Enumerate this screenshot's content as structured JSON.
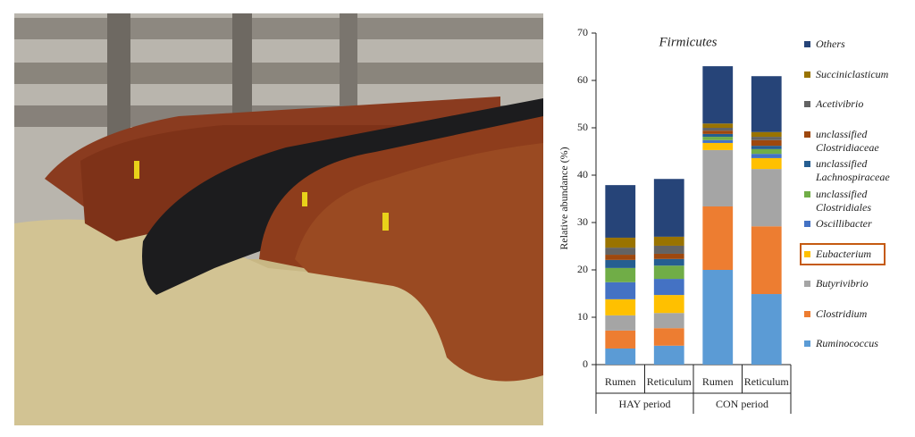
{
  "chart_data": {
    "type": "stacked_bar",
    "title": "Firmicutes",
    "y_label": "Relative abundance (%)",
    "categories": [
      "Rumen",
      "Reticulum",
      "Rumen",
      "Reticulum"
    ],
    "groups": [
      "HAY period",
      "CON period"
    ],
    "ylim": [
      0,
      70
    ],
    "yticks": [
      0,
      10,
      20,
      30,
      40,
      50,
      60,
      70
    ],
    "series": [
      {
        "name": "Ruminococcus",
        "color": "#5b9bd5",
        "values": [
          3.4,
          4.0,
          20.0,
          14.9
        ]
      },
      {
        "name": "Clostridium",
        "color": "#ed7d31",
        "values": [
          3.8,
          3.7,
          13.4,
          14.3
        ]
      },
      {
        "name": "Butyrivibrio",
        "color": "#a5a5a5",
        "values": [
          3.2,
          3.2,
          11.9,
          12.1
        ]
      },
      {
        "name": "Eubacterium",
        "color": "#ffc000",
        "values": [
          3.4,
          3.8,
          1.5,
          2.3
        ],
        "highlighted": true
      },
      {
        "name": "Oscillibacter",
        "color": "#4472c4",
        "values": [
          3.6,
          3.4,
          0.6,
          0.9
        ]
      },
      {
        "name": "unclassified Clostridiales",
        "color": "#70ad47",
        "values": [
          3.0,
          2.8,
          0.7,
          1.0
        ]
      },
      {
        "name": "unclassified Lachnospiraceae",
        "color": "#255e91",
        "values": [
          1.7,
          1.4,
          0.6,
          0.7
        ]
      },
      {
        "name": "unclassified Clostridiaceae",
        "color": "#9e480e",
        "values": [
          1.1,
          1.1,
          0.7,
          1.2
        ]
      },
      {
        "name": "Acetivibrio",
        "color": "#636363",
        "values": [
          1.5,
          1.7,
          0.6,
          0.7
        ]
      },
      {
        "name": "Succiniclasticum",
        "color": "#997300",
        "values": [
          2.1,
          1.9,
          0.9,
          1.0
        ]
      },
      {
        "name": "Others",
        "color": "#264478",
        "values": [
          11.1,
          12.2,
          12.1,
          11.8
        ]
      }
    ]
  }
}
